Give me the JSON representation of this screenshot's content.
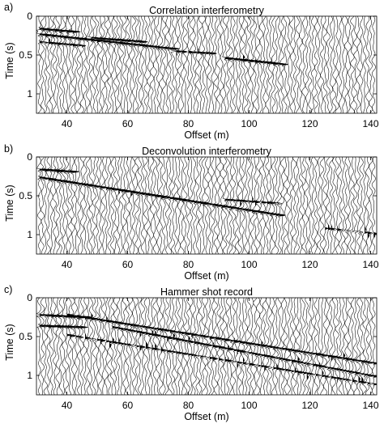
{
  "chart_data": [
    {
      "type": "wiggle-seismogram",
      "panel_label": "a)",
      "title": "Correlation interferometry",
      "xlabel": "Offset (m)",
      "ylabel": "Time (s)",
      "xlim": [
        30,
        142
      ],
      "ylim": [
        0,
        1.25
      ],
      "y_reversed": true,
      "x_ticks": [
        40,
        60,
        80,
        100,
        120,
        140
      ],
      "y_ticks": [
        0,
        0.5,
        1
      ],
      "y_tick_labels": [
        "0",
        "0.5",
        "1"
      ],
      "trace_spacing_m": 1,
      "grid": false,
      "arrivals": [
        {
          "x": [
            30,
            42
          ],
          "t": [
            0.16,
            0.2
          ],
          "amplitude": 1.0
        },
        {
          "x": [
            30,
            75
          ],
          "t": [
            0.23,
            0.42
          ],
          "amplitude": 0.9
        },
        {
          "x": [
            30,
            45
          ],
          "t": [
            0.33,
            0.38
          ],
          "amplitude": 0.6
        },
        {
          "x": [
            48,
            65
          ],
          "t": [
            0.28,
            0.33
          ],
          "amplitude": 0.8
        },
        {
          "x": [
            75,
            88
          ],
          "t": [
            0.45,
            0.48
          ],
          "amplitude": 0.6
        },
        {
          "x": [
            92,
            111
          ],
          "t": [
            0.54,
            0.62
          ],
          "amplitude": 0.9
        }
      ]
    },
    {
      "type": "wiggle-seismogram",
      "panel_label": "b)",
      "title": "Deconvolution interferometry",
      "xlabel": "Offset (m)",
      "ylabel": "Time (s)",
      "xlim": [
        30,
        142
      ],
      "ylim": [
        0,
        1.25
      ],
      "y_reversed": true,
      "x_ticks": [
        40,
        60,
        80,
        100,
        120,
        140
      ],
      "y_ticks": [
        0,
        0.5,
        1
      ],
      "y_tick_labels": [
        "0",
        "0.5",
        "1"
      ],
      "trace_spacing_m": 1,
      "grid": false,
      "arrivals": [
        {
          "x": [
            30,
            42
          ],
          "t": [
            0.16,
            0.19
          ],
          "amplitude": 1.0
        },
        {
          "x": [
            30,
            110
          ],
          "t": [
            0.26,
            0.75
          ],
          "amplitude": 0.9
        },
        {
          "x": [
            92,
            110
          ],
          "t": [
            0.55,
            0.6
          ],
          "amplitude": 0.6
        },
        {
          "x": [
            125,
            142
          ],
          "t": [
            0.92,
            0.99
          ],
          "amplitude": 0.4
        }
      ]
    },
    {
      "type": "wiggle-seismogram",
      "panel_label": "c)",
      "title": "Hammer shot record",
      "xlabel": "Offset (m)",
      "ylabel": "Time (s)",
      "xlim": [
        30,
        142
      ],
      "ylim": [
        0,
        1.25
      ],
      "y_reversed": true,
      "x_ticks": [
        40,
        60,
        80,
        100,
        120,
        140
      ],
      "y_ticks": [
        0,
        0.5,
        1
      ],
      "y_tick_labels": [
        "0",
        "0.5",
        "1"
      ],
      "trace_spacing_m": 1,
      "grid": false,
      "arrivals": [
        {
          "x": [
            30,
            45
          ],
          "t": [
            0.22,
            0.25
          ],
          "amplitude": 0.9
        },
        {
          "x": [
            30,
            45
          ],
          "t": [
            0.36,
            0.38
          ],
          "amplitude": 0.9
        },
        {
          "x": [
            40,
            142
          ],
          "t": [
            0.22,
            0.85
          ],
          "amplitude": 0.8
        },
        {
          "x": [
            55,
            142
          ],
          "t": [
            0.38,
            1.02
          ],
          "amplitude": 0.7
        },
        {
          "x": [
            40,
            142
          ],
          "t": [
            0.48,
            1.12
          ],
          "amplitude": 0.5
        }
      ]
    }
  ]
}
